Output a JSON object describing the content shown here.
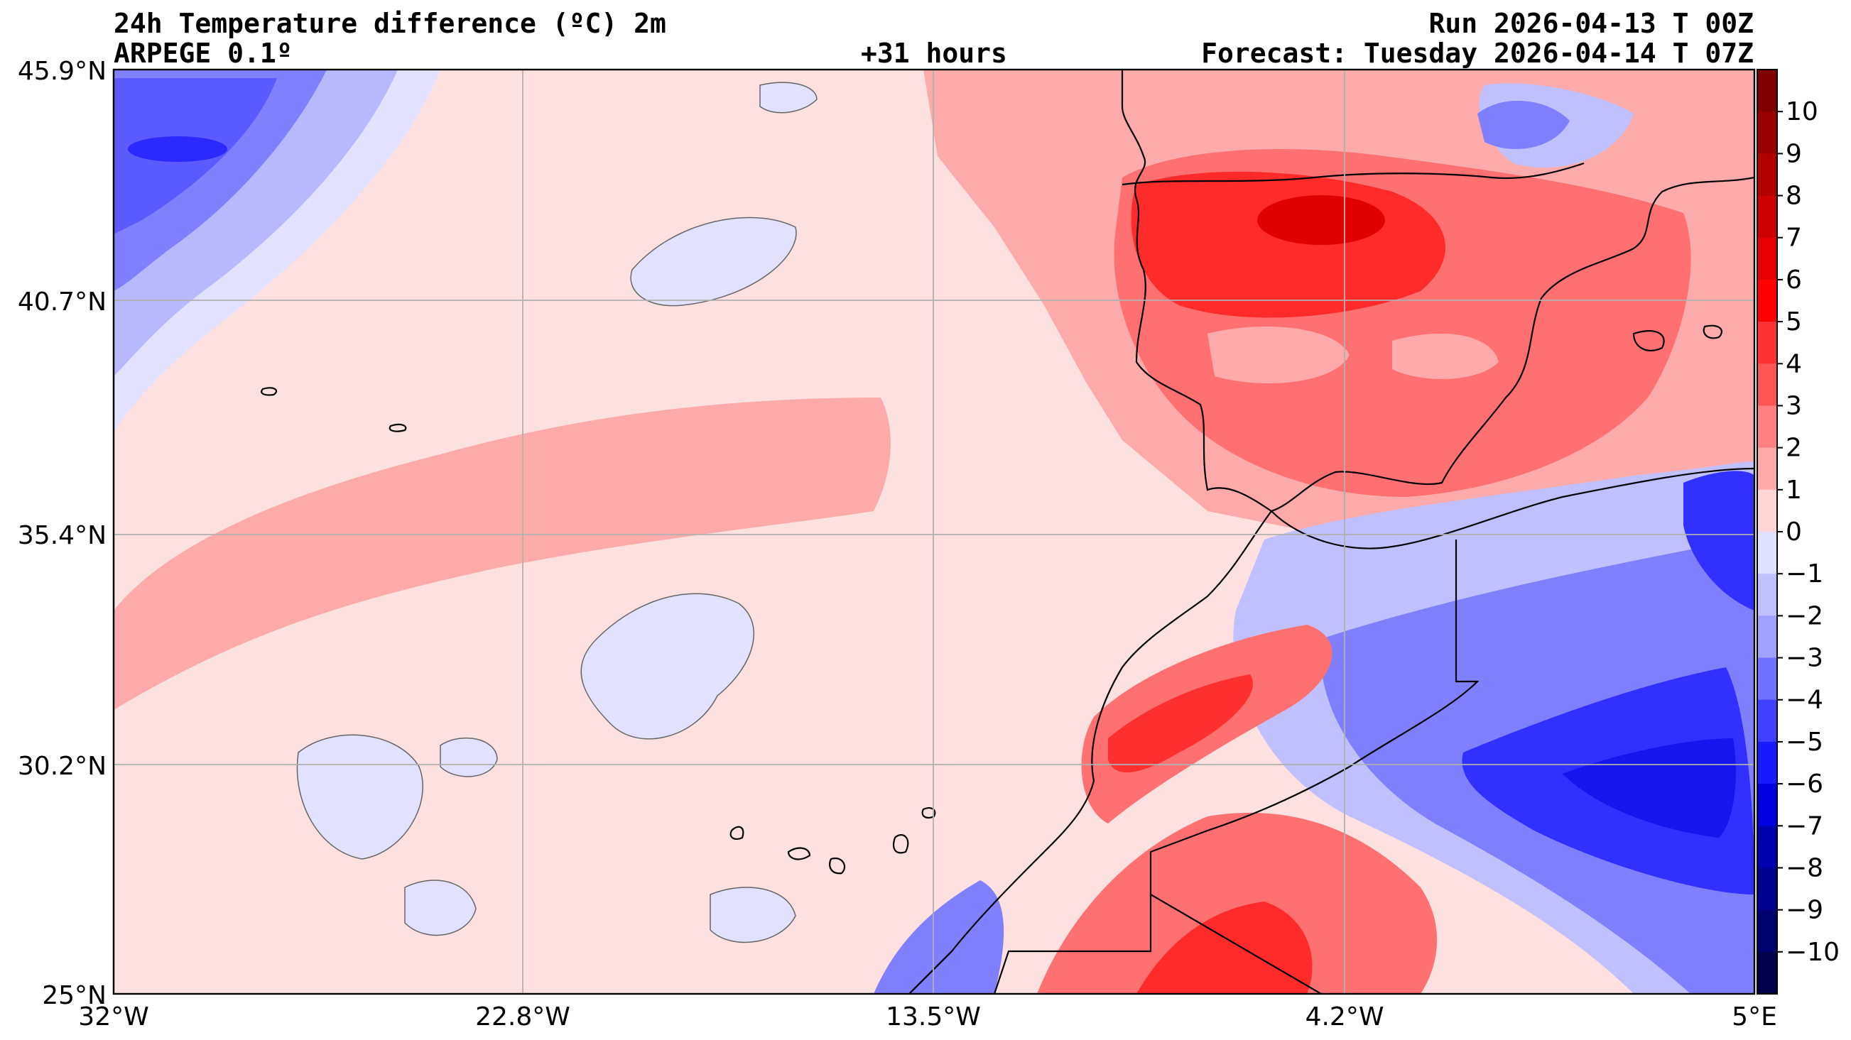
{
  "header": {
    "title": "24h Temperature difference (ºC) 2m",
    "model": "ARPEGE 0.1º",
    "lead_time": "+31 hours",
    "run": "Run 2026-04-13 T 00Z",
    "forecast": "Forecast: Tuesday 2026-04-14 T 07Z"
  },
  "axes": {
    "lat_labels": [
      "45.9°N",
      "40.7°N",
      "35.4°N",
      "30.2°N",
      "25°N"
    ],
    "lon_labels": [
      "32°W",
      "22.8°W",
      "13.5°W",
      "4.2°W",
      "5°E"
    ]
  },
  "colorbar": {
    "labels": [
      "10",
      "9",
      "8",
      "7",
      "6",
      "5",
      "4",
      "3",
      "2",
      "1",
      "0",
      "−1",
      "−2",
      "−3",
      "−4",
      "−5",
      "−6",
      "−7",
      "−8",
      "−9",
      "−10"
    ],
    "colors": [
      "#800000",
      "#990000",
      "#b30000",
      "#cc0000",
      "#e60000",
      "#ff0000",
      "#ff3333",
      "#ff5555",
      "#ff8080",
      "#ffaaaa",
      "#ffd5d5",
      "#e0e0ff",
      "#c0c0ff",
      "#a0a0ff",
      "#7070ff",
      "#4040ff",
      "#1a1aff",
      "#0000e0",
      "#0000b0",
      "#000090",
      "#000070",
      "#00004d"
    ]
  },
  "map": {
    "ocean_color": "#fde0e0",
    "grid_color": "#b0b0b0",
    "coast_color": "#000000"
  }
}
